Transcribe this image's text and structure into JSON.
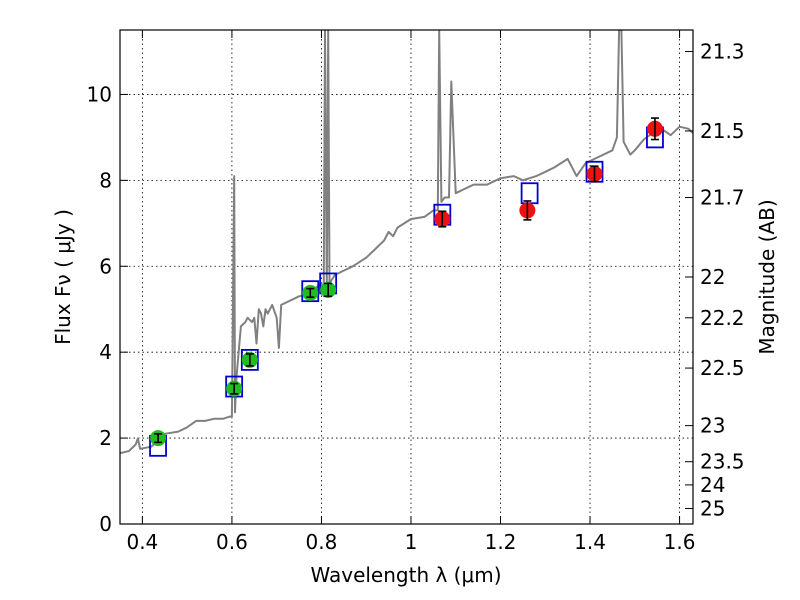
{
  "chart_data": {
    "type": "scatter",
    "xlabel": "Wavelength  λ (μm)",
    "ylabel": "Flux  Fν  ( μJy )",
    "y2label": "Magnitude (AB)",
    "xlim": [
      0.35,
      1.63
    ],
    "ylim": [
      0,
      11.5
    ],
    "x_ticks": [
      0.4,
      0.6,
      0.8,
      1.0,
      1.2,
      1.4,
      1.6
    ],
    "x_tick_labels": [
      "0.4",
      "0.6",
      "0.8",
      "1",
      "1.2",
      "1.4",
      "1.6"
    ],
    "y_ticks": [
      0,
      2,
      4,
      6,
      8,
      10
    ],
    "y_tick_labels": [
      "0",
      "2",
      "4",
      "6",
      "8",
      "10"
    ],
    "y2_ticks": [
      {
        "label": "21.3",
        "flux": 11.0
      },
      {
        "label": "21.5",
        "flux": 9.15
      },
      {
        "label": "21.7",
        "flux": 7.6
      },
      {
        "label": "22",
        "flux": 5.75
      },
      {
        "label": "22.2",
        "flux": 4.8
      },
      {
        "label": "22.5",
        "flux": 3.63
      },
      {
        "label": "23",
        "flux": 2.29
      },
      {
        "label": "23.5",
        "flux": 1.45
      },
      {
        "label": "24",
        "flux": 0.91
      },
      {
        "label": "25",
        "flux": 0.36
      }
    ],
    "grid": true,
    "series": [
      {
        "kind": "spectrum",
        "color": "#808080",
        "points": [
          [
            0.35,
            1.65
          ],
          [
            0.37,
            1.7
          ],
          [
            0.385,
            1.85
          ],
          [
            0.39,
            1.99
          ],
          [
            0.395,
            1.75
          ],
          [
            0.42,
            1.8
          ],
          [
            0.45,
            2.1
          ],
          [
            0.48,
            2.15
          ],
          [
            0.5,
            2.25
          ],
          [
            0.52,
            2.4
          ],
          [
            0.54,
            2.4
          ],
          [
            0.56,
            2.45
          ],
          [
            0.58,
            2.45
          ],
          [
            0.595,
            2.5
          ],
          [
            0.6,
            2.5
          ],
          [
            0.605,
            8.1
          ],
          [
            0.607,
            2.6
          ],
          [
            0.61,
            3.4
          ],
          [
            0.62,
            4.6
          ],
          [
            0.63,
            4.7
          ],
          [
            0.635,
            4.8
          ],
          [
            0.645,
            4.7
          ],
          [
            0.65,
            4.8
          ],
          [
            0.655,
            4.2
          ],
          [
            0.66,
            5.0
          ],
          [
            0.665,
            4.9
          ],
          [
            0.67,
            4.6
          ],
          [
            0.675,
            5.0
          ],
          [
            0.68,
            4.9
          ],
          [
            0.685,
            5.0
          ],
          [
            0.69,
            5.1
          ],
          [
            0.7,
            4.8
          ],
          [
            0.705,
            4.1
          ],
          [
            0.71,
            5.1
          ],
          [
            0.73,
            5.2
          ],
          [
            0.75,
            5.3
          ],
          [
            0.77,
            5.35
          ],
          [
            0.8,
            5.6
          ],
          [
            0.805,
            5.3
          ],
          [
            0.808,
            11.5
          ],
          [
            0.812,
            5.5
          ],
          [
            0.815,
            11.5
          ],
          [
            0.818,
            5.6
          ],
          [
            0.83,
            5.8
          ],
          [
            0.85,
            5.9
          ],
          [
            0.87,
            6.0
          ],
          [
            0.9,
            6.2
          ],
          [
            0.92,
            6.4
          ],
          [
            0.94,
            6.6
          ],
          [
            0.95,
            6.8
          ],
          [
            0.96,
            6.7
          ],
          [
            0.97,
            6.9
          ],
          [
            1.0,
            7.1
          ],
          [
            1.03,
            7.15
          ],
          [
            1.05,
            7.3
          ],
          [
            1.06,
            7.3
          ],
          [
            1.063,
            11.5
          ],
          [
            1.068,
            7.5
          ],
          [
            1.075,
            7.6
          ],
          [
            1.085,
            7.6
          ],
          [
            1.09,
            10.3
          ],
          [
            1.1,
            7.7
          ],
          [
            1.12,
            7.8
          ],
          [
            1.14,
            7.9
          ],
          [
            1.17,
            7.9
          ],
          [
            1.2,
            8.05
          ],
          [
            1.23,
            8.1
          ],
          [
            1.25,
            8.0
          ],
          [
            1.28,
            8.1
          ],
          [
            1.3,
            8.2
          ],
          [
            1.32,
            8.3
          ],
          [
            1.35,
            8.5
          ],
          [
            1.37,
            8.1
          ],
          [
            1.39,
            8.4
          ],
          [
            1.41,
            8.5
          ],
          [
            1.43,
            8.6
          ],
          [
            1.45,
            8.7
          ],
          [
            1.46,
            9.0
          ],
          [
            1.465,
            11.5
          ],
          [
            1.47,
            11.5
          ],
          [
            1.475,
            8.9
          ],
          [
            1.49,
            8.6
          ],
          [
            1.5,
            8.7
          ],
          [
            1.52,
            8.95
          ],
          [
            1.54,
            9.1
          ],
          [
            1.56,
            9.2
          ],
          [
            1.58,
            9.05
          ],
          [
            1.6,
            9.25
          ],
          [
            1.62,
            9.2
          ],
          [
            1.63,
            9.1
          ]
        ]
      },
      {
        "kind": "model_photometry",
        "marker": "square",
        "color": "#0000cc",
        "points": [
          [
            0.435,
            1.82
          ],
          [
            0.605,
            3.2
          ],
          [
            0.64,
            3.82
          ],
          [
            0.775,
            5.42
          ],
          [
            0.815,
            5.6
          ],
          [
            1.07,
            7.2
          ],
          [
            1.265,
            7.7
          ],
          [
            1.41,
            8.2
          ],
          [
            1.545,
            9.0
          ]
        ]
      },
      {
        "kind": "observed_optical",
        "marker": "circle",
        "color": "#22bb22",
        "points": [
          {
            "x": 0.435,
            "y": 2.0,
            "err": 0.1
          },
          {
            "x": 0.605,
            "y": 3.15,
            "err": 0.12
          },
          {
            "x": 0.64,
            "y": 3.82,
            "err": 0.14
          },
          {
            "x": 0.775,
            "y": 5.38,
            "err": 0.1
          },
          {
            "x": 0.815,
            "y": 5.45,
            "err": 0.15
          }
        ]
      },
      {
        "kind": "observed_nir",
        "marker": "circle",
        "color": "#ee1111",
        "points": [
          {
            "x": 1.07,
            "y": 7.1,
            "err": 0.18
          },
          {
            "x": 1.26,
            "y": 7.3,
            "err": 0.22
          },
          {
            "x": 1.41,
            "y": 8.15,
            "err": 0.18
          },
          {
            "x": 1.545,
            "y": 9.2,
            "err": 0.25
          }
        ]
      }
    ]
  }
}
